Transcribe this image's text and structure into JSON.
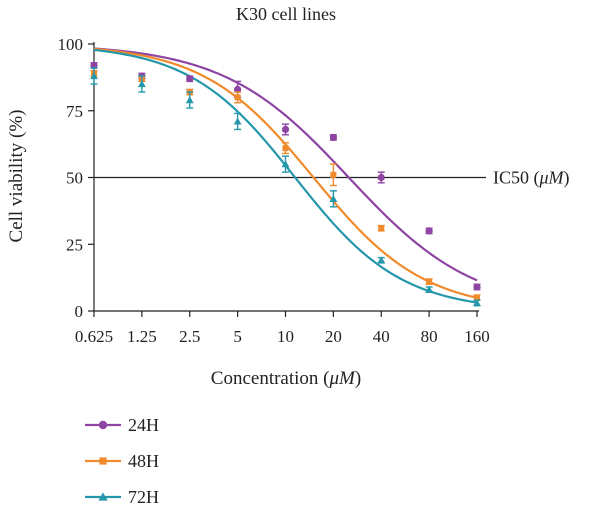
{
  "chart_data": {
    "type": "scatter",
    "title": "K30 cell lines",
    "xlabel": "Concentration (μM)",
    "xlabel_main": "Concentration (",
    "xlabel_unit": "μM",
    "xlabel_close": ")",
    "ylabel": "Cell viability (%)",
    "x_scale": "log",
    "x": [
      0.625,
      1.25,
      2.5,
      5,
      10,
      20,
      40,
      80,
      160
    ],
    "x_tick_labels": [
      "0.625",
      "1.25",
      "2.5",
      "5",
      "10",
      "20",
      "40",
      "80",
      "160"
    ],
    "ylim": [
      0,
      100
    ],
    "y_ticks": [
      0,
      25,
      50,
      75,
      100
    ],
    "y_tick_labels": [
      "0",
      "25",
      "50",
      "75",
      "100"
    ],
    "reference_line": {
      "y": 50,
      "label": "IC50 (μM)",
      "label_main": "IC50 (",
      "label_unit": "μM",
      "label_close": ")"
    },
    "legend_position": "bottom-left",
    "series": [
      {
        "name": "24H",
        "color": "#8e44a2",
        "marker": "circle",
        "values": [
          92,
          88,
          87,
          83,
          68,
          65,
          50,
          30,
          9
        ],
        "errors": [
          1,
          1,
          1,
          3,
          2,
          1,
          2,
          1,
          1
        ],
        "fit_ic50": 25,
        "fit_hill": 1.1
      },
      {
        "name": "48H",
        "color": "#f08a2c",
        "marker": "square",
        "values": [
          89,
          87,
          82,
          80,
          61,
          51,
          31,
          11,
          5
        ],
        "errors": [
          1,
          1,
          1,
          2,
          2,
          4,
          1,
          1,
          1
        ],
        "fit_ic50": 15,
        "fit_hill": 1.25
      },
      {
        "name": "72H",
        "color": "#2597ab",
        "marker": "triangle",
        "values": [
          88,
          85,
          79,
          71,
          55,
          42,
          19,
          8,
          3
        ],
        "errors": [
          3,
          3,
          3,
          3,
          3,
          3,
          1,
          1,
          1
        ],
        "fit_ic50": 11.5,
        "fit_hill": 1.3
      }
    ]
  }
}
